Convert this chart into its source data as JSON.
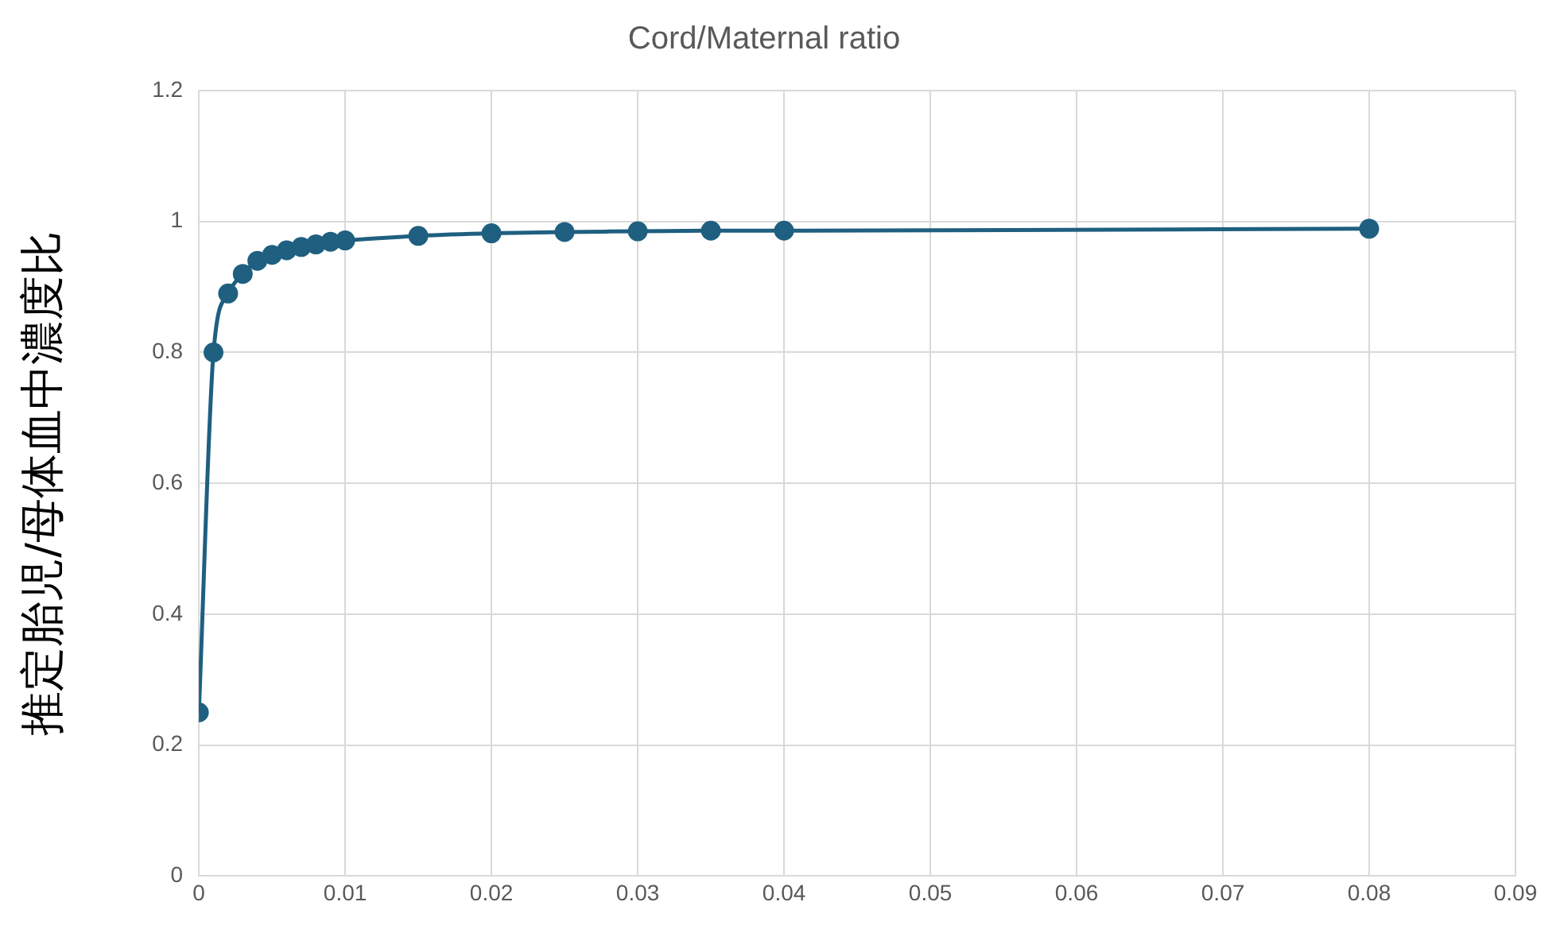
{
  "chart_data": {
    "type": "line",
    "title": "Cord/Maternal ratio",
    "ylabel": "推定胎児/母体血中濃度比",
    "x": [
      0,
      0.001,
      0.002,
      0.003,
      0.004,
      0.005,
      0.006,
      0.007,
      0.008,
      0.009,
      0.01,
      0.015,
      0.02,
      0.025,
      0.03,
      0.035,
      0.04,
      0.08
    ],
    "series": [
      {
        "color": "#1f5f80",
        "values": [
          0.25,
          0.8,
          0.89,
          0.92,
          0.94,
          0.949,
          0.956,
          0.961,
          0.965,
          0.969,
          0.971,
          0.978,
          0.982,
          0.984,
          0.985,
          0.986,
          0.986,
          0.989
        ]
      }
    ],
    "xlim": [
      0,
      0.09
    ],
    "xticks": [
      0,
      0.01,
      0.02,
      0.03,
      0.04,
      0.05,
      0.06,
      0.07,
      0.08,
      0.09
    ],
    "ylim": [
      0,
      1.2
    ],
    "yticks": [
      0,
      0.2,
      0.4,
      0.6,
      0.8,
      1,
      1.2
    ],
    "grid": true,
    "legend": false,
    "marker": "circle",
    "line_style": "solid"
  }
}
